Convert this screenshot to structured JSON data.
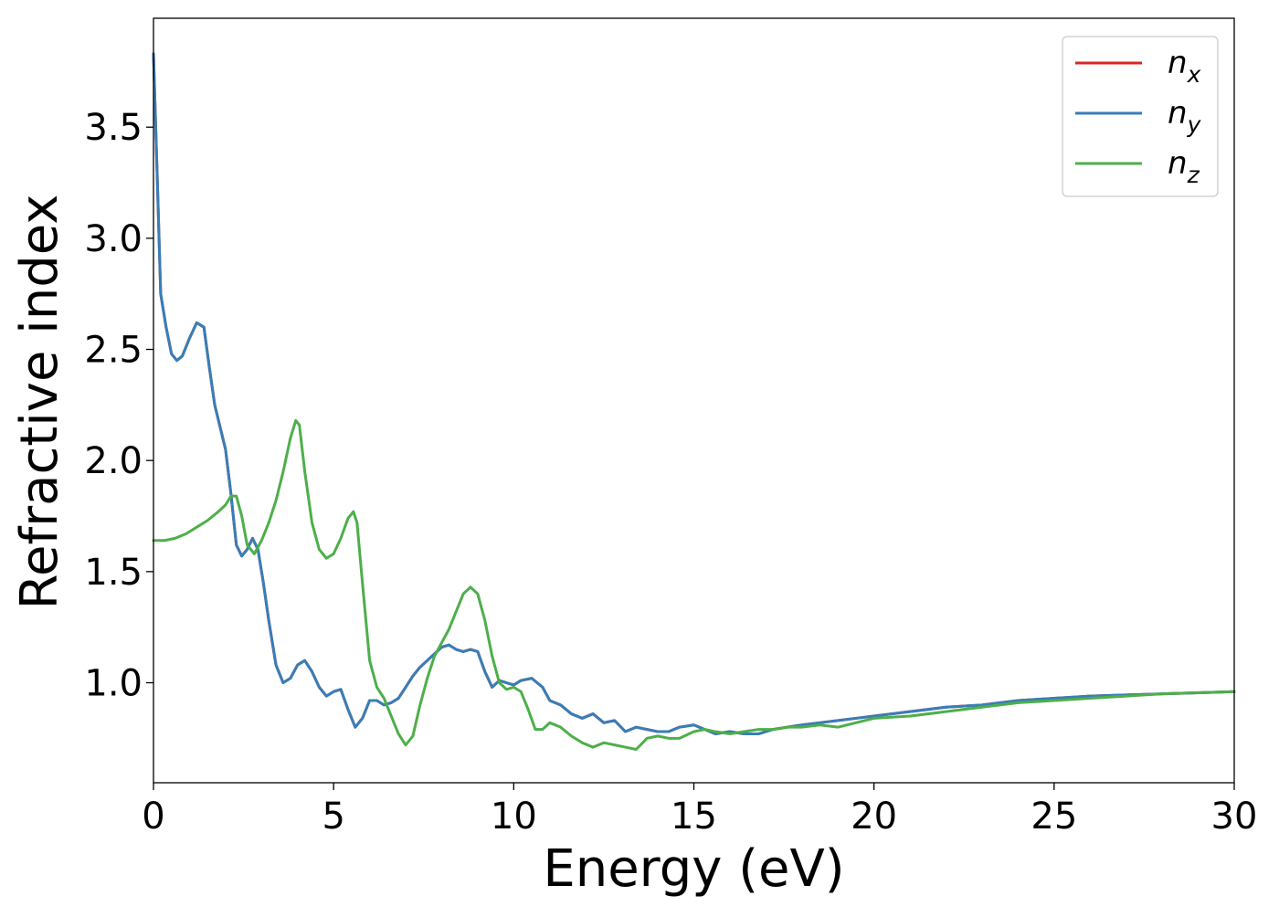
{
  "chart_data": {
    "type": "line",
    "xlabel": "Energy (eV)",
    "ylabel": "Refractive index",
    "xlim": [
      0,
      30
    ],
    "ylim": [
      0.55,
      3.99
    ],
    "xticks": [
      "0",
      "5",
      "10",
      "15",
      "20",
      "25",
      "30"
    ],
    "yticks": [
      "1.0",
      "1.5",
      "2.0",
      "2.5",
      "3.0",
      "3.5"
    ],
    "grid": false,
    "legend_position": "top-right",
    "series": [
      {
        "name": "n_x",
        "legend_base": "n",
        "legend_sub": "x",
        "color": "#d62728",
        "x": [
          0,
          0.1,
          0.2,
          0.35,
          0.5,
          0.65,
          0.8,
          1.0,
          1.2,
          1.4,
          1.55,
          1.7,
          1.85,
          2.0,
          2.15,
          2.3,
          2.45,
          2.6,
          2.75,
          2.9,
          3.05,
          3.2,
          3.4,
          3.6,
          3.8,
          4.0,
          4.2,
          4.4,
          4.6,
          4.8,
          5.0,
          5.2,
          5.4,
          5.6,
          5.8,
          6.0,
          6.2,
          6.4,
          6.6,
          6.8,
          7.0,
          7.2,
          7.4,
          7.6,
          7.8,
          8.0,
          8.2,
          8.4,
          8.6,
          8.8,
          9.0,
          9.2,
          9.4,
          9.6,
          9.8,
          10.0,
          10.2,
          10.5,
          10.8,
          11.0,
          11.3,
          11.6,
          11.9,
          12.2,
          12.5,
          12.8,
          13.1,
          13.4,
          13.7,
          14.0,
          14.3,
          14.6,
          15.0,
          15.3,
          15.6,
          16.0,
          16.4,
          16.8,
          17.2,
          17.6,
          18.0,
          18.5,
          19.0,
          19.5,
          20.0,
          21.0,
          22.0,
          23.0,
          24.0,
          25.0,
          26.0,
          27.0,
          28.0,
          29.0,
          30.0
        ],
        "y": [
          3.83,
          3.3,
          2.75,
          2.6,
          2.48,
          2.45,
          2.47,
          2.55,
          2.62,
          2.6,
          2.42,
          2.25,
          2.15,
          2.05,
          1.85,
          1.62,
          1.57,
          1.6,
          1.65,
          1.6,
          1.45,
          1.28,
          1.08,
          1.0,
          1.02,
          1.08,
          1.1,
          1.05,
          0.98,
          0.94,
          0.96,
          0.97,
          0.88,
          0.8,
          0.84,
          0.92,
          0.92,
          0.9,
          0.91,
          0.93,
          0.98,
          1.03,
          1.07,
          1.1,
          1.13,
          1.16,
          1.17,
          1.15,
          1.14,
          1.15,
          1.14,
          1.05,
          0.98,
          1.01,
          1.0,
          0.99,
          1.01,
          1.02,
          0.98,
          0.92,
          0.9,
          0.86,
          0.84,
          0.86,
          0.82,
          0.83,
          0.78,
          0.8,
          0.79,
          0.78,
          0.78,
          0.8,
          0.81,
          0.79,
          0.77,
          0.78,
          0.77,
          0.77,
          0.79,
          0.8,
          0.81,
          0.82,
          0.83,
          0.84,
          0.85,
          0.87,
          0.89,
          0.9,
          0.92,
          0.93,
          0.94,
          0.945,
          0.95,
          0.955,
          0.96
        ]
      },
      {
        "name": "n_y",
        "legend_base": "n",
        "legend_sub": "y",
        "color": "#377eb8",
        "x": [
          0,
          0.1,
          0.2,
          0.35,
          0.5,
          0.65,
          0.8,
          1.0,
          1.2,
          1.4,
          1.55,
          1.7,
          1.85,
          2.0,
          2.15,
          2.3,
          2.45,
          2.6,
          2.75,
          2.9,
          3.05,
          3.2,
          3.4,
          3.6,
          3.8,
          4.0,
          4.2,
          4.4,
          4.6,
          4.8,
          5.0,
          5.2,
          5.4,
          5.6,
          5.8,
          6.0,
          6.2,
          6.4,
          6.6,
          6.8,
          7.0,
          7.2,
          7.4,
          7.6,
          7.8,
          8.0,
          8.2,
          8.4,
          8.6,
          8.8,
          9.0,
          9.2,
          9.4,
          9.6,
          9.8,
          10.0,
          10.2,
          10.5,
          10.8,
          11.0,
          11.3,
          11.6,
          11.9,
          12.2,
          12.5,
          12.8,
          13.1,
          13.4,
          13.7,
          14.0,
          14.3,
          14.6,
          15.0,
          15.3,
          15.6,
          16.0,
          16.4,
          16.8,
          17.2,
          17.6,
          18.0,
          18.5,
          19.0,
          19.5,
          20.0,
          21.0,
          22.0,
          23.0,
          24.0,
          25.0,
          26.0,
          27.0,
          28.0,
          29.0,
          30.0
        ],
        "y": [
          3.83,
          3.3,
          2.75,
          2.6,
          2.48,
          2.45,
          2.47,
          2.55,
          2.62,
          2.6,
          2.42,
          2.25,
          2.15,
          2.05,
          1.85,
          1.62,
          1.57,
          1.6,
          1.65,
          1.6,
          1.45,
          1.28,
          1.08,
          1.0,
          1.02,
          1.08,
          1.1,
          1.05,
          0.98,
          0.94,
          0.96,
          0.97,
          0.88,
          0.8,
          0.84,
          0.92,
          0.92,
          0.9,
          0.91,
          0.93,
          0.98,
          1.03,
          1.07,
          1.1,
          1.13,
          1.16,
          1.17,
          1.15,
          1.14,
          1.15,
          1.14,
          1.05,
          0.98,
          1.01,
          1.0,
          0.99,
          1.01,
          1.02,
          0.98,
          0.92,
          0.9,
          0.86,
          0.84,
          0.86,
          0.82,
          0.83,
          0.78,
          0.8,
          0.79,
          0.78,
          0.78,
          0.8,
          0.81,
          0.79,
          0.77,
          0.78,
          0.77,
          0.77,
          0.79,
          0.8,
          0.81,
          0.82,
          0.83,
          0.84,
          0.85,
          0.87,
          0.89,
          0.9,
          0.92,
          0.93,
          0.94,
          0.945,
          0.95,
          0.955,
          0.96
        ]
      },
      {
        "name": "n_z",
        "legend_base": "n",
        "legend_sub": "z",
        "color": "#4daf4a",
        "x": [
          0,
          0.3,
          0.6,
          0.9,
          1.2,
          1.5,
          1.8,
          2.0,
          2.15,
          2.3,
          2.45,
          2.6,
          2.8,
          3.0,
          3.2,
          3.4,
          3.6,
          3.8,
          3.95,
          4.05,
          4.2,
          4.4,
          4.6,
          4.8,
          5.0,
          5.2,
          5.4,
          5.55,
          5.65,
          5.8,
          6.0,
          6.2,
          6.4,
          6.6,
          6.8,
          7.0,
          7.2,
          7.4,
          7.6,
          7.8,
          8.0,
          8.2,
          8.4,
          8.6,
          8.8,
          9.0,
          9.2,
          9.4,
          9.6,
          9.8,
          10.0,
          10.2,
          10.4,
          10.6,
          10.8,
          11.0,
          11.3,
          11.6,
          11.9,
          12.2,
          12.5,
          12.8,
          13.1,
          13.4,
          13.7,
          14.0,
          14.3,
          14.6,
          15.0,
          15.3,
          15.6,
          16.0,
          16.4,
          16.8,
          17.2,
          17.6,
          18.0,
          18.5,
          19.0,
          19.5,
          20.0,
          21.0,
          22.0,
          23.0,
          24.0,
          25.0,
          26.0,
          27.0,
          28.0,
          29.0,
          30.0
        ],
        "y": [
          1.64,
          1.64,
          1.65,
          1.67,
          1.7,
          1.73,
          1.77,
          1.8,
          1.84,
          1.84,
          1.75,
          1.62,
          1.58,
          1.64,
          1.72,
          1.82,
          1.95,
          2.1,
          2.18,
          2.16,
          1.95,
          1.72,
          1.6,
          1.56,
          1.58,
          1.65,
          1.74,
          1.77,
          1.72,
          1.45,
          1.1,
          0.98,
          0.93,
          0.85,
          0.77,
          0.72,
          0.76,
          0.9,
          1.02,
          1.12,
          1.18,
          1.24,
          1.32,
          1.4,
          1.43,
          1.4,
          1.28,
          1.12,
          1.0,
          0.97,
          0.98,
          0.96,
          0.88,
          0.79,
          0.79,
          0.82,
          0.8,
          0.76,
          0.73,
          0.71,
          0.73,
          0.72,
          0.71,
          0.7,
          0.75,
          0.76,
          0.75,
          0.75,
          0.78,
          0.79,
          0.78,
          0.77,
          0.78,
          0.79,
          0.79,
          0.8,
          0.8,
          0.81,
          0.8,
          0.82,
          0.84,
          0.85,
          0.87,
          0.89,
          0.91,
          0.92,
          0.93,
          0.94,
          0.95,
          0.955,
          0.96
        ]
      }
    ]
  }
}
